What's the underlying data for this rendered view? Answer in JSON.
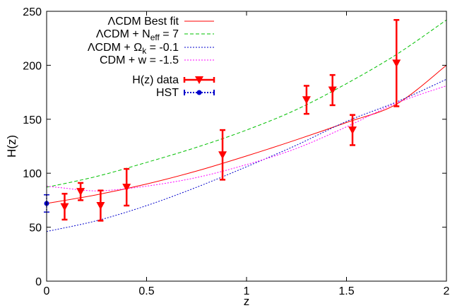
{
  "chart_data": {
    "type": "line",
    "xlabel": "z",
    "ylabel": "H(z)",
    "xlim": [
      0,
      2
    ],
    "ylim": [
      0,
      250
    ],
    "x_ticks": [
      0,
      0.5,
      1,
      1.5,
      2
    ],
    "x_tick_labels": [
      "0",
      "0.5",
      "1",
      "1.5",
      "2"
    ],
    "y_ticks": [
      0,
      50,
      100,
      150,
      200,
      250
    ],
    "y_tick_labels": [
      "0",
      "50",
      "100",
      "150",
      "200",
      "250"
    ],
    "grid": false,
    "legend_position": "top-left",
    "series": [
      {
        "name": "ΛCDM Best fit",
        "style": "solid",
        "color": "#ff0000",
        "x": [
          0,
          0.25,
          0.5,
          0.75,
          1.0,
          1.25,
          1.5,
          1.75,
          2.0
        ],
        "y": [
          72,
          80,
          90,
          102,
          116,
          131,
          147,
          164,
          200
        ]
      },
      {
        "name": "ΛCDM + N_eff = 7",
        "style": "dashed",
        "color": "#00c000",
        "x": [
          0,
          0.25,
          0.5,
          0.75,
          1.0,
          1.25,
          1.5,
          1.75,
          2.0
        ],
        "y": [
          87,
          97,
          110,
          124,
          140,
          159,
          183,
          210,
          242
        ]
      },
      {
        "name": "ΛCDM + Ω_k = -0.1",
        "style": "dotted",
        "color": "#0000cc",
        "x": [
          0,
          0.25,
          0.5,
          0.75,
          1.0,
          1.25,
          1.5,
          1.75,
          2.0
        ],
        "y": [
          46,
          56,
          70,
          87,
          106,
          126,
          148,
          166,
          187
        ]
      },
      {
        "name": "CDM + w = -1.5",
        "style": "dotted",
        "color": "#ff00ff",
        "x": [
          0,
          0.1,
          0.2,
          0.3,
          0.5,
          0.75,
          1.0,
          1.25,
          1.5,
          1.75,
          2.0
        ],
        "y": [
          88,
          86,
          84,
          84,
          88,
          96,
          108,
          123,
          143,
          165,
          181
        ]
      },
      {
        "name": "H(z) data",
        "type": "errorbar",
        "marker": "triangle-down",
        "color": "#ff0000",
        "points": [
          {
            "x": 0.09,
            "y": 69,
            "err": 12
          },
          {
            "x": 0.17,
            "y": 83,
            "err": 8
          },
          {
            "x": 0.27,
            "y": 70,
            "err": 14
          },
          {
            "x": 0.4,
            "y": 87,
            "err": 17
          },
          {
            "x": 0.88,
            "y": 117,
            "err": 23
          },
          {
            "x": 1.3,
            "y": 168,
            "err": 13
          },
          {
            "x": 1.43,
            "y": 177,
            "err": 14
          },
          {
            "x": 1.53,
            "y": 140,
            "err": 14
          },
          {
            "x": 1.75,
            "y": 202,
            "err": 40
          }
        ]
      },
      {
        "name": "HST",
        "type": "errorbar",
        "marker": "circle",
        "color": "#0000cc",
        "points": [
          {
            "x": 0,
            "y": 72,
            "err": 8
          }
        ]
      }
    ]
  }
}
